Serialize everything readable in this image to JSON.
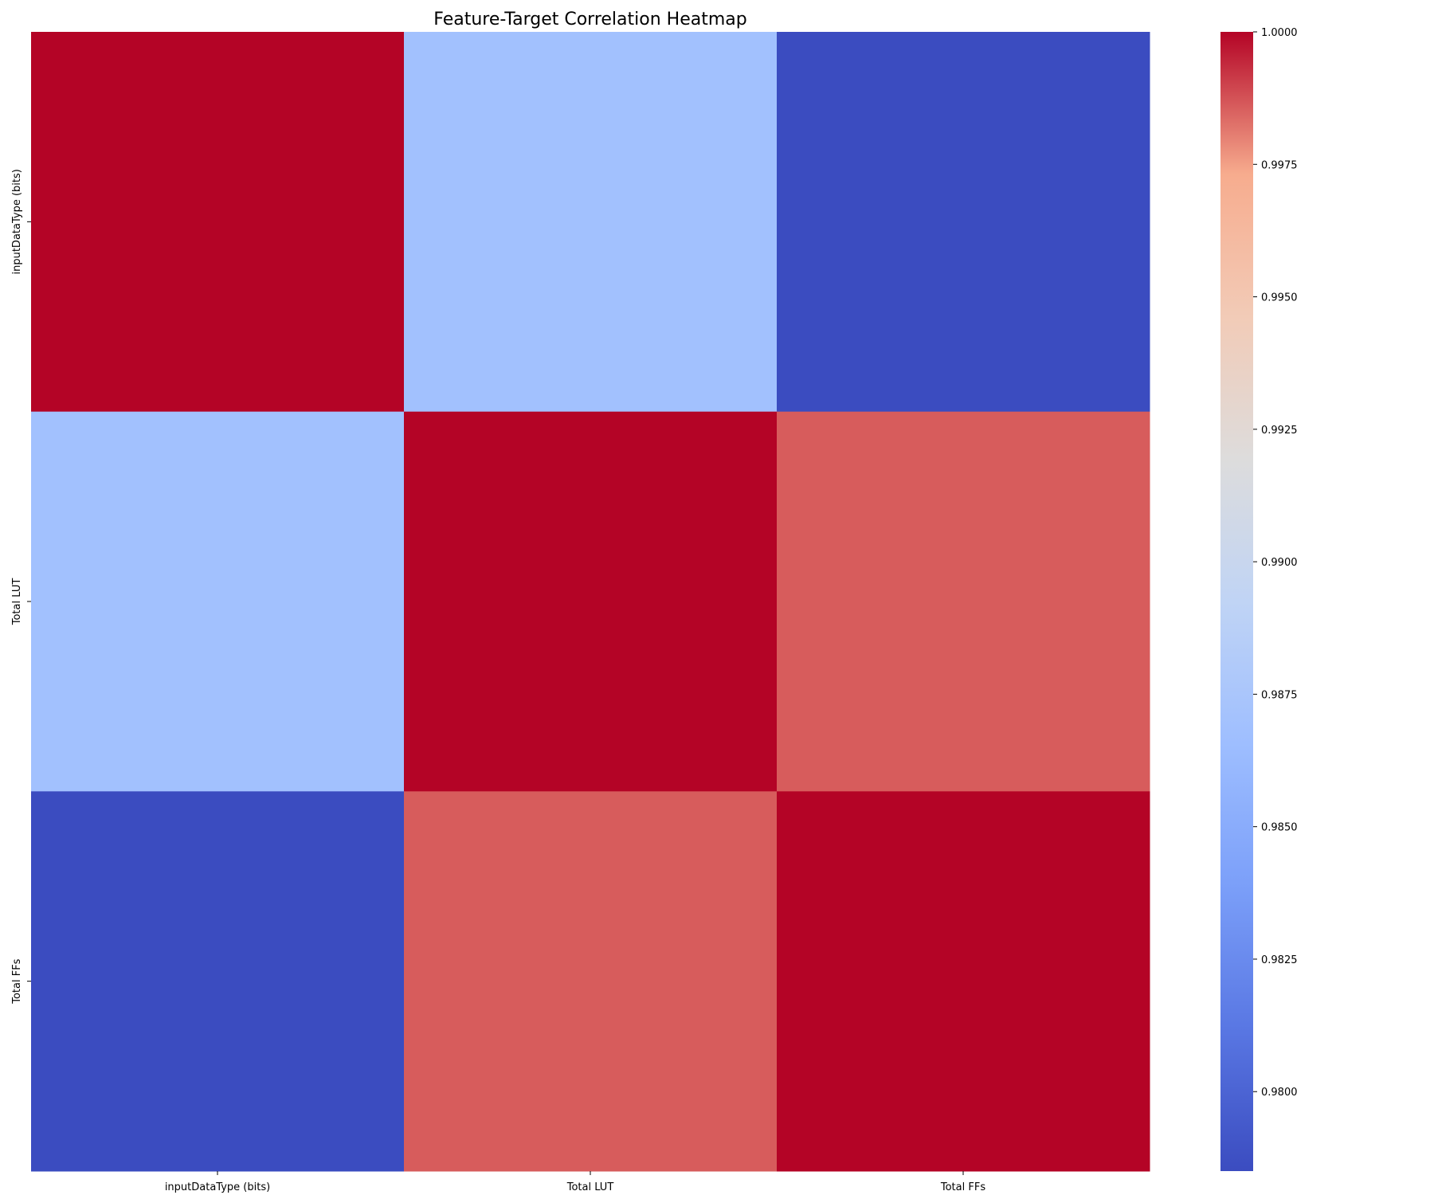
{
  "chart_data": {
    "type": "heatmap",
    "title": "Feature-Target Correlation Heatmap",
    "x_categories": [
      "inputDataType (bits)",
      "Total LUT",
      "Total FFs"
    ],
    "y_categories": [
      "inputDataType (bits)",
      "Total LUT",
      "Total FFs"
    ],
    "values": [
      [
        1.0,
        0.9869,
        0.9785
      ],
      [
        0.9869,
        1.0,
        0.9986
      ],
      [
        0.9785,
        0.9986,
        1.0
      ]
    ],
    "colormap": "coolwarm",
    "colorbar": {
      "min": 0.9785,
      "max": 1.0,
      "ticks": [
        0.98,
        0.9825,
        0.985,
        0.9875,
        0.99,
        0.9925,
        0.995,
        0.9975,
        1.0
      ],
      "tick_labels": [
        "0.9800",
        "0.9825",
        "0.9850",
        "0.9875",
        "0.9900",
        "0.9925",
        "0.9950",
        "0.9975",
        "1.0000"
      ],
      "placement": "right"
    },
    "xlabel": "",
    "ylabel": "",
    "grid": false
  }
}
